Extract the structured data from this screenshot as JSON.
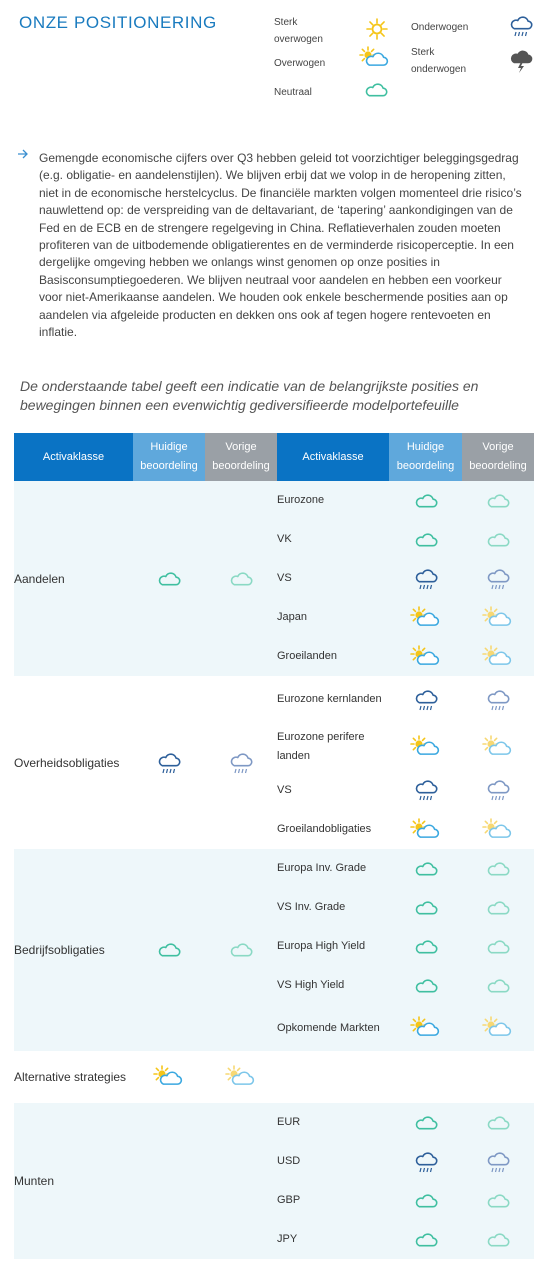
{
  "title": "ONZE POSITIONERING",
  "legend": [
    {
      "label": "Sterk overwogen",
      "icon": "sun-icon"
    },
    {
      "label": "Overwogen",
      "icon": "sun-cloud-icon"
    },
    {
      "label": "Neutraal",
      "icon": "cloud-icon"
    },
    {
      "label": "Onderwogen",
      "icon": "rain-cloud-icon"
    },
    {
      "label": "Sterk onderwogen",
      "icon": "storm-cloud-icon"
    }
  ],
  "intro": "Gemengde economische cijfers over Q3 hebben geleid tot voorzichtiger beleggingsgedrag (e.g. obligatie- en aandelenstijlen). We blijven erbij dat we volop in de heropening zitten, niet in de economische herstelcyclus. De financiële markten volgen momenteel drie risico’s nauwlettend op: de verspreiding van de deltavariant, de ‘tapering’ aankondigingen van de Fed en de ECB en de strengere regelgeving in China. Reflatieverhalen zouden moeten profiteren van de uitbodemende obligatierentes en de verminderde risicoperceptie. In een dergelijke omgeving hebben we onlangs winst genomen op onze posities in Basisconsumptiegoederen. We blijven neutraal voor aandelen en hebben een voorkeur voor niet-Amerikaanse aandelen. We houden ook enkele beschermende posities aan op aandelen via afgeleide producten en dekken ons ook af tegen hogere rentevoeten en inflatie.",
  "subtitle": "De onderstaande tabel geeft een indicatie van de belangrijkste posities en bewegingen binnen een evenwichtig gediversifieerde modelportefeuille",
  "table": {
    "headers": {
      "asset_class": "Activaklasse",
      "current": "Huidige beoordeling",
      "previous": "Vorige beoordeling"
    },
    "groups": [
      {
        "name": "Aandelen",
        "current": "cloud",
        "previous": "cloud",
        "shaded": true,
        "items": [
          {
            "name": "Eurozone",
            "current": "cloud",
            "previous": "cloud"
          },
          {
            "name": "VK",
            "current": "cloud",
            "previous": "cloud"
          },
          {
            "name": "VS",
            "current": "rain",
            "previous": "rain"
          },
          {
            "name": "Japan",
            "current": "suncloud",
            "previous": "suncloud"
          },
          {
            "name": "Groeilanden",
            "current": "suncloud",
            "previous": "suncloud"
          }
        ]
      },
      {
        "name": "Overheidsobligaties",
        "current": "rain",
        "previous": "rain",
        "shaded": false,
        "items": [
          {
            "name": "Eurozone kernlanden",
            "current": "rain",
            "previous": "rain"
          },
          {
            "name": "Eurozone perifere landen",
            "current": "suncloud",
            "previous": "suncloud"
          },
          {
            "name": "VS",
            "current": "rain",
            "previous": "rain"
          },
          {
            "name": "Groeilandobligaties",
            "current": "suncloud",
            "previous": "suncloud"
          }
        ]
      },
      {
        "name": "Bedrijfsobligaties",
        "current": "cloud",
        "previous": "cloud",
        "shaded": true,
        "items": [
          {
            "name": "Europa Inv. Grade",
            "current": "cloud",
            "previous": "cloud"
          },
          {
            "name": "VS Inv. Grade",
            "current": "cloud",
            "previous": "cloud"
          },
          {
            "name": "Europa High Yield",
            "current": "cloud",
            "previous": "cloud"
          },
          {
            "name": "VS High Yield",
            "current": "cloud",
            "previous": "cloud"
          },
          {
            "name": "Opkomende Markten",
            "current": "suncloud",
            "previous": "suncloud"
          }
        ]
      },
      {
        "name": "Alternative strategies",
        "current": "suncloud",
        "previous": "suncloud",
        "shaded": false,
        "items": []
      },
      {
        "name": "Munten",
        "current": null,
        "previous": null,
        "shaded": true,
        "items": [
          {
            "name": "EUR",
            "current": "cloud",
            "previous": "cloud"
          },
          {
            "name": "USD",
            "current": "rain",
            "previous": "rain"
          },
          {
            "name": "GBP",
            "current": "cloud",
            "previous": "cloud"
          },
          {
            "name": "JPY",
            "current": "cloud",
            "previous": "cloud"
          }
        ]
      }
    ]
  },
  "colors": {
    "brand_blue": "#1a7bbf",
    "header_activaklasse": "#0a73c4",
    "header_current": "#5fa8dc",
    "header_previous": "#9aa0a6",
    "row_shade": "#eef7fa",
    "neutral_cloud": "#3fbfa0",
    "neutral_cloud_prev": "#8ad9c4",
    "rain_cloud": "#2d5f9a",
    "rain_cloud_prev": "#7e98c4",
    "sun": "#f5c518",
    "sun_cloud_outline": "#3aa8e0"
  }
}
